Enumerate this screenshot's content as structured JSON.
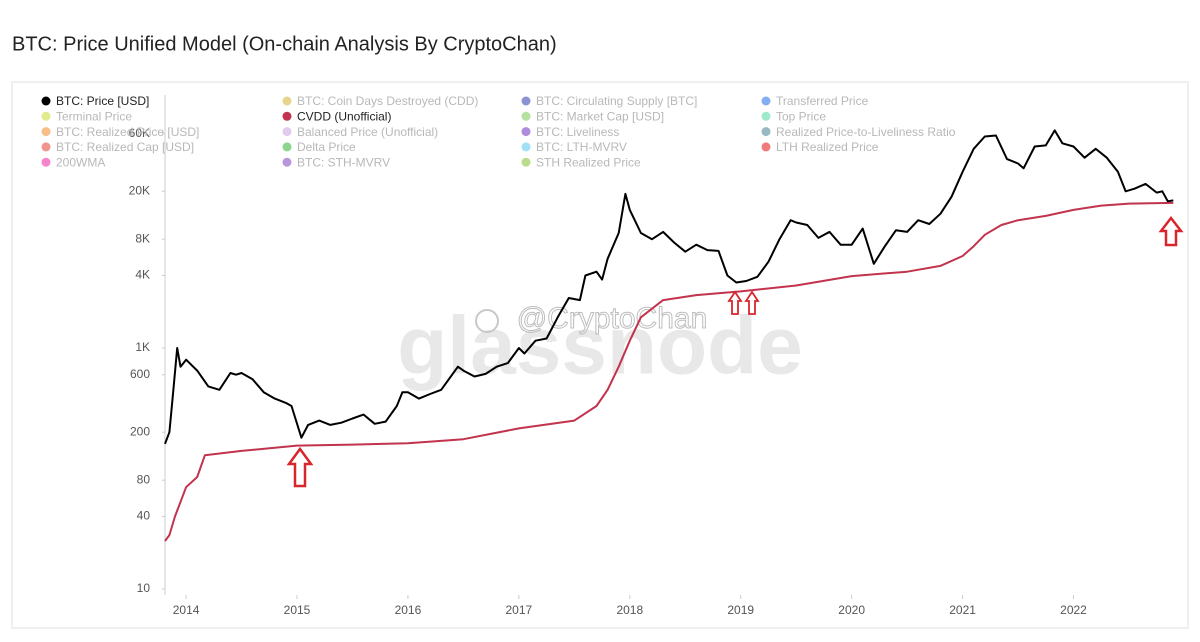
{
  "chart_data": {
    "type": "line",
    "title": "BTC: Price Unified Model (On-chain Analysis By CryptoChan)",
    "log_scale": true,
    "grid": false,
    "xlim": [
      2013.81,
      2022.96
    ],
    "xticks": [
      2014,
      2015,
      2016,
      2017,
      2018,
      2019,
      2020,
      2021,
      2022
    ],
    "ylim": [
      9,
      120000
    ],
    "yticks": [
      10,
      40,
      80,
      200,
      600,
      {
        "value": 1000,
        "label": "1K"
      },
      {
        "value": 4000,
        "label": "4K"
      },
      {
        "value": 8000,
        "label": "8K"
      },
      {
        "value": 20000,
        "label": "20K"
      },
      {
        "value": 60000,
        "label": "60K"
      }
    ],
    "series": [
      {
        "name": "BTC: Price [USD]",
        "color": "#000000",
        "x": [
          2013.81,
          2013.85,
          2013.88,
          2013.92,
          2013.95,
          2014.0,
          2014.1,
          2014.2,
          2014.3,
          2014.4,
          2014.45,
          2014.5,
          2014.6,
          2014.7,
          2014.8,
          2014.9,
          2014.95,
          2015.04,
          2015.1,
          2015.2,
          2015.3,
          2015.4,
          2015.5,
          2015.6,
          2015.7,
          2015.8,
          2015.9,
          2015.95,
          2016.0,
          2016.1,
          2016.2,
          2016.3,
          2016.45,
          2016.5,
          2016.6,
          2016.7,
          2016.8,
          2016.9,
          2017.0,
          2017.05,
          2017.15,
          2017.25,
          2017.35,
          2017.45,
          2017.55,
          2017.6,
          2017.7,
          2017.75,
          2017.8,
          2017.9,
          2017.96,
          2018.0,
          2018.1,
          2018.2,
          2018.3,
          2018.4,
          2018.5,
          2018.6,
          2018.7,
          2018.8,
          2018.88,
          2018.96,
          2019.05,
          2019.15,
          2019.25,
          2019.35,
          2019.45,
          2019.5,
          2019.6,
          2019.7,
          2019.8,
          2019.9,
          2020.0,
          2020.1,
          2020.2,
          2020.3,
          2020.4,
          2020.5,
          2020.6,
          2020.7,
          2020.8,
          2020.9,
          2021.0,
          2021.1,
          2021.2,
          2021.3,
          2021.4,
          2021.5,
          2021.55,
          2021.65,
          2021.75,
          2021.83,
          2021.9,
          2022.0,
          2022.1,
          2022.2,
          2022.3,
          2022.4,
          2022.47,
          2022.55,
          2022.65,
          2022.75,
          2022.8,
          2022.85,
          2022.9
        ],
        "values": [
          160,
          200,
          400,
          1000,
          700,
          800,
          650,
          480,
          450,
          620,
          600,
          620,
          550,
          430,
          380,
          350,
          330,
          180,
          230,
          250,
          230,
          240,
          260,
          280,
          235,
          245,
          330,
          430,
          430,
          380,
          415,
          450,
          700,
          650,
          580,
          610,
          700,
          750,
          1000,
          900,
          1150,
          1200,
          1800,
          2600,
          2500,
          4000,
          4300,
          3700,
          5500,
          9000,
          19000,
          14000,
          9000,
          8000,
          9200,
          7500,
          6300,
          7200,
          6500,
          6400,
          4000,
          3500,
          3600,
          3900,
          5200,
          8000,
          11500,
          11000,
          10500,
          8200,
          9200,
          7200,
          7200,
          9800,
          5000,
          7000,
          9500,
          9200,
          11500,
          10700,
          13000,
          18000,
          29000,
          45000,
          57000,
          58000,
          37000,
          34000,
          31000,
          47000,
          48000,
          64000,
          50000,
          47000,
          38000,
          45000,
          38000,
          29000,
          20000,
          21000,
          23000,
          19500,
          20000,
          16500,
          16800
        ]
      },
      {
        "name": "CVDD (Unofficial)",
        "color": "#c2334d",
        "x": [
          2013.81,
          2013.85,
          2013.9,
          2014.0,
          2014.1,
          2014.17,
          2014.5,
          2015.0,
          2015.5,
          2016.0,
          2016.5,
          2017.0,
          2017.5,
          2017.7,
          2017.8,
          2017.9,
          2018.0,
          2018.1,
          2018.3,
          2018.6,
          2019.0,
          2019.5,
          2020.0,
          2020.5,
          2020.8,
          2021.0,
          2021.1,
          2021.2,
          2021.35,
          2021.5,
          2021.75,
          2022.0,
          2022.25,
          2022.5,
          2022.9
        ],
        "values": [
          25,
          28,
          40,
          70,
          85,
          129,
          140,
          155,
          158,
          162,
          175,
          215,
          250,
          330,
          450,
          700,
          1150,
          1800,
          2500,
          2750,
          2950,
          3300,
          3950,
          4300,
          4800,
          5800,
          7000,
          8700,
          10500,
          11500,
          12500,
          14000,
          15200,
          15800,
          16000
        ]
      }
    ],
    "inactive_legend": [
      {
        "name": "BTC: Coin Days Destroyed (CDD)",
        "color": "#d4b030"
      },
      {
        "name": "BTC: Circulating Supply [BTC]",
        "color": "#2a3cb0"
      },
      {
        "name": "Transferred Price",
        "color": "#1e6ee8"
      },
      {
        "name": "Terminal Price",
        "color": "#c8d830"
      },
      {
        "name": "BTC: Market Cap [USD]",
        "color": "#7ac850"
      },
      {
        "name": "Top Price",
        "color": "#50d8a0"
      },
      {
        "name": "BTC: Realized Price [USD]",
        "color": "#f08a24"
      },
      {
        "name": "Balanced Price (Unofficial)",
        "color": "#c8a0e0"
      },
      {
        "name": "BTC: Liveliness",
        "color": "#7030c0"
      },
      {
        "name": "Realized Price-to-Liveliness Ratio",
        "color": "#408090"
      },
      {
        "name": "BTC: Realized Cap [USD]",
        "color": "#e04030"
      },
      {
        "name": "Delta Price",
        "color": "#30b030"
      },
      {
        "name": "BTC: LTH-MVRV",
        "color": "#50c8f0"
      },
      {
        "name": "LTH Realized Price",
        "color": "#e01010"
      },
      {
        "name": "200WMA",
        "color": "#f020a0"
      },
      {
        "name": "BTC: STH-MVRV",
        "color": "#8040c0"
      },
      {
        "name": "STH Realized Price",
        "color": "#80c030"
      }
    ],
    "watermarks": [
      "glassnode",
      "@CryptoChan"
    ]
  }
}
